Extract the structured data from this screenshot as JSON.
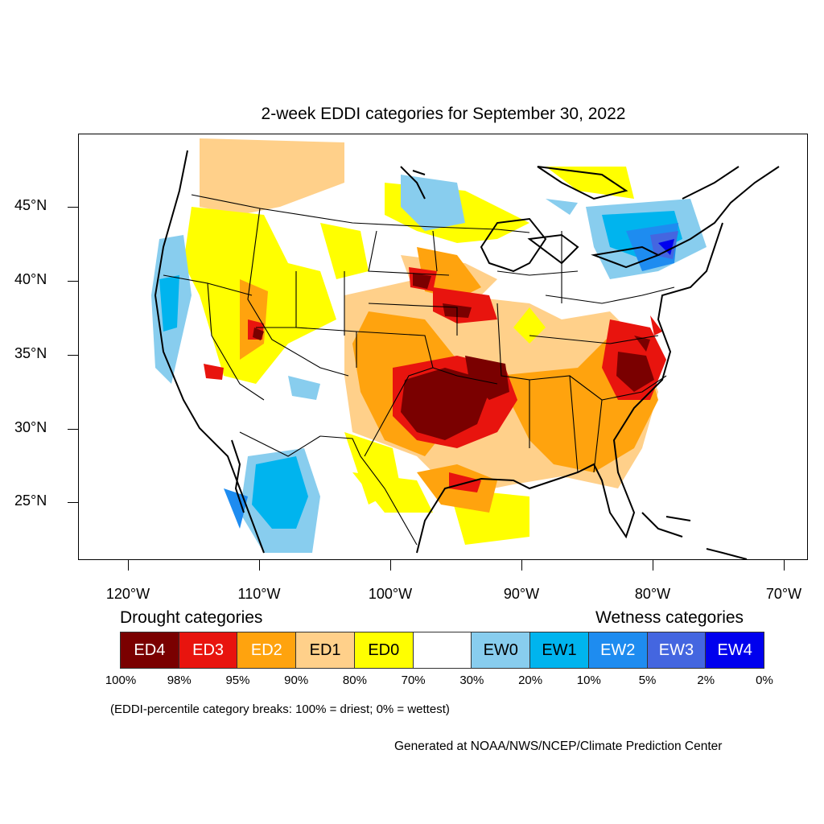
{
  "title": "2-week EDDI categories for September 30, 2022",
  "lat_labels": [
    "45°N",
    "40°N",
    "35°N",
    "30°N",
    "25°N"
  ],
  "lon_labels": [
    "120°W",
    "110°W",
    "100°W",
    "90°W",
    "80°W",
    "70°W"
  ],
  "legend": {
    "drought_heading": "Drought categories",
    "wetness_heading": "Wetness categories",
    "categories": [
      {
        "label": "ED4",
        "color": "#7a0000",
        "text_color": "#ffffff"
      },
      {
        "label": "ED3",
        "color": "#e8140e",
        "text_color": "#ffffff"
      },
      {
        "label": "ED2",
        "color": "#ffa30e",
        "text_color": "#ffffff"
      },
      {
        "label": "ED1",
        "color": "#ffd08a",
        "text_color": "#000000"
      },
      {
        "label": "ED0",
        "color": "#ffff00",
        "text_color": "#000000"
      },
      {
        "label": "",
        "color": "#ffffff",
        "text_color": "#000000"
      },
      {
        "label": "EW0",
        "color": "#88cdee",
        "text_color": "#000000"
      },
      {
        "label": "EW1",
        "color": "#00b4ee",
        "text_color": "#000000"
      },
      {
        "label": "EW2",
        "color": "#1e8cf0",
        "text_color": "#ffffff"
      },
      {
        "label": "EW3",
        "color": "#4466e0",
        "text_color": "#ffffff"
      },
      {
        "label": "EW4",
        "color": "#0000ee",
        "text_color": "#ffffff"
      }
    ],
    "breaks": [
      "100%",
      "98%",
      "95%",
      "90%",
      "80%",
      "70%",
      "30%",
      "20%",
      "10%",
      "5%",
      "2%",
      "0%"
    ]
  },
  "note": "(EDDI-percentile category breaks: 100% = driest; 0% = wettest)",
  "credit": "Generated at NOAA/NWS/NCEP/Climate Prediction Center"
}
